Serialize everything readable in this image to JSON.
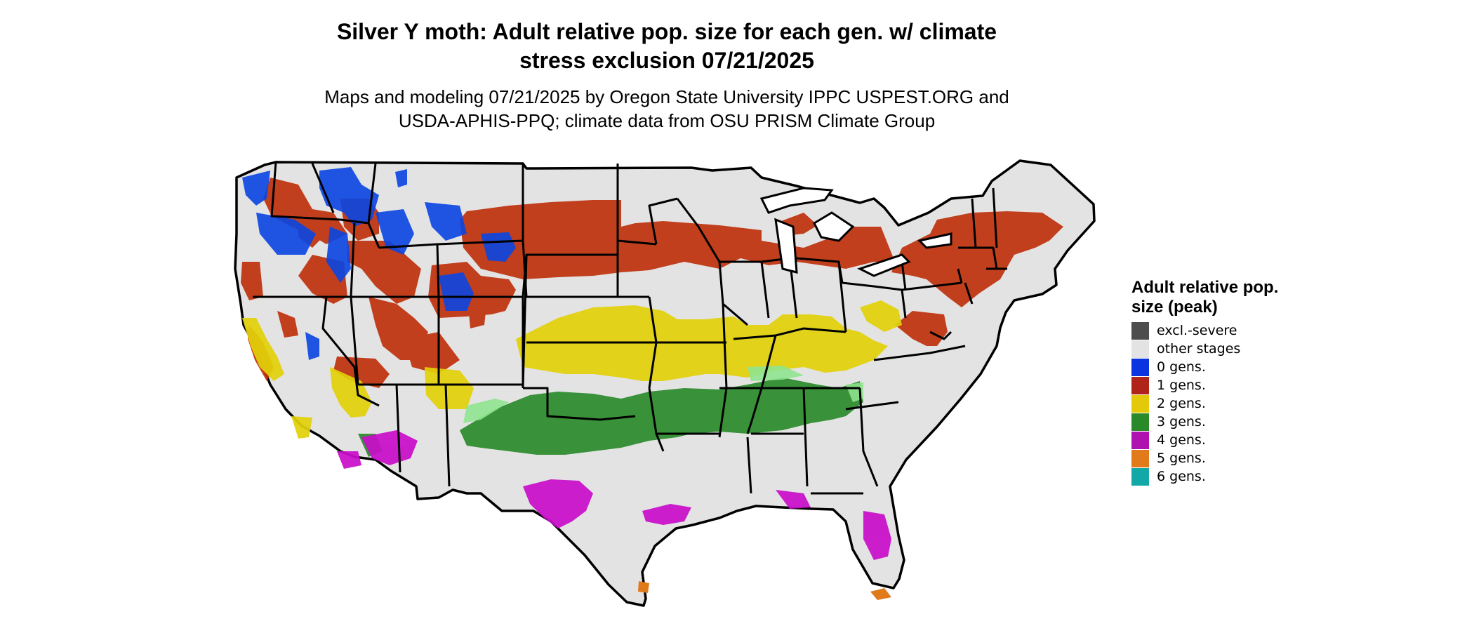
{
  "title_line1": "Silver Y moth: Adult relative pop. size for each gen. w/ climate",
  "title_line2": "stress exclusion 07/21/2025",
  "subtitle_line1": "Maps and modeling 07/21/2025 by Oregon State University IPPC USPEST.ORG and",
  "subtitle_line2": "USDA-APHIS-PPQ; climate data from OSU PRISM Climate Group",
  "legend": {
    "title": "Adult relative pop. size (peak)",
    "items": [
      {
        "label": "excl.-severe",
        "color": "#4d4d4d"
      },
      {
        "label": "other stages",
        "color": "#e3e3e3"
      },
      {
        "label": "0 gens.",
        "color": "#0a34e0"
      },
      {
        "label": "1 gens.",
        "color": "#b02318"
      },
      {
        "label": "2 gens.",
        "color": "#e3c90a"
      },
      {
        "label": "3 gens.",
        "color": "#2a8a2a"
      },
      {
        "label": "4 gens.",
        "color": "#b012b0"
      },
      {
        "label": "5 gens.",
        "color": "#e07a1a"
      },
      {
        "label": "6 gens.",
        "color": "#12a8a8"
      }
    ]
  }
}
